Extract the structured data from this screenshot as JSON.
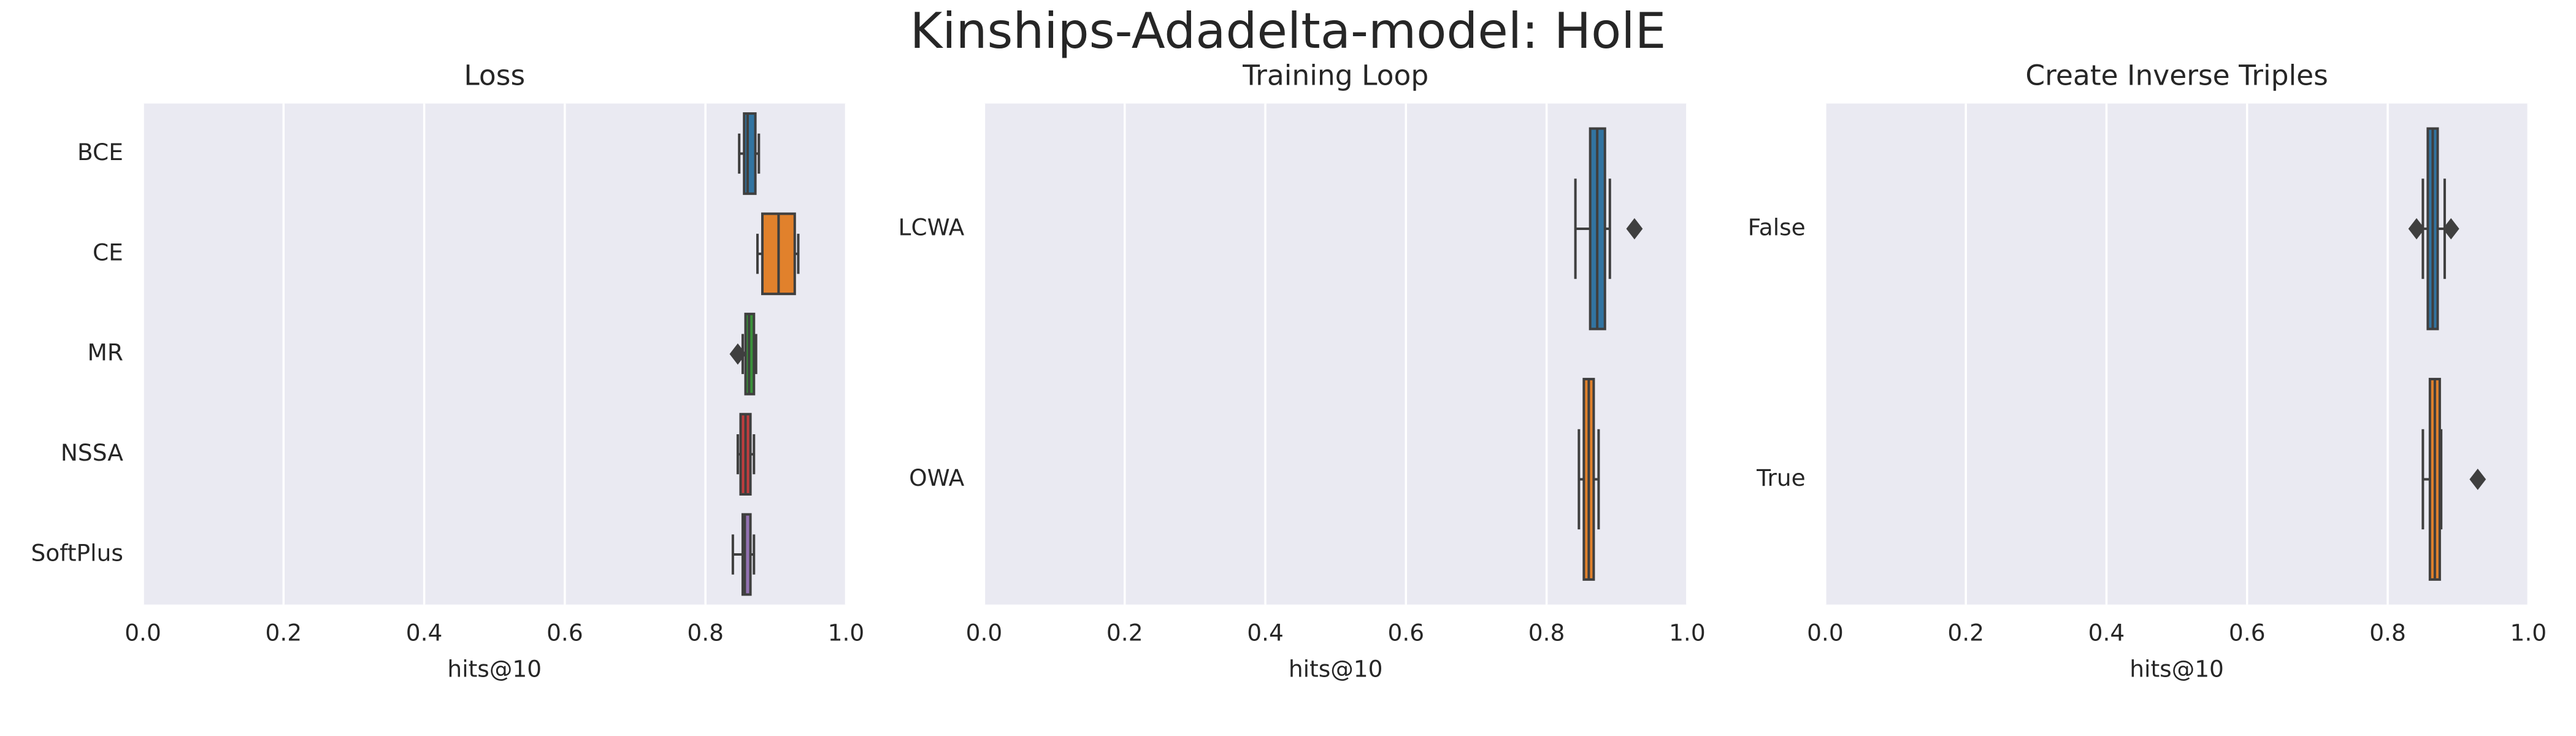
{
  "title": "Kinships-Adadelta-model: HolE",
  "chart_data": [
    {
      "type": "box",
      "title": "Loss",
      "xlabel": "hits@10",
      "categories": [
        "BCE",
        "CE",
        "MR",
        "NSSA",
        "SoftPlus"
      ],
      "colors": [
        "#3274a1",
        "#e1812c",
        "#3a923a",
        "#c03d3e",
        "#9372b2"
      ],
      "boxes": [
        {
          "min": 0.848,
          "q1": 0.855,
          "median": 0.86,
          "q3": 0.871,
          "max": 0.876,
          "outliers": []
        },
        {
          "min": 0.874,
          "q1": 0.881,
          "median": 0.904,
          "q3": 0.927,
          "max": 0.932,
          "outliers": []
        },
        {
          "min": 0.853,
          "q1": 0.857,
          "median": 0.862,
          "q3": 0.869,
          "max": 0.872,
          "outliers": [
            0.846
          ]
        },
        {
          "min": 0.846,
          "q1": 0.85,
          "median": 0.857,
          "q3": 0.864,
          "max": 0.869,
          "outliers": []
        },
        {
          "min": 0.839,
          "q1": 0.853,
          "median": 0.856,
          "q3": 0.864,
          "max": 0.869,
          "outliers": []
        }
      ],
      "xlim": [
        0,
        1
      ],
      "xticks": [
        {
          "value": 0,
          "label": "0.0"
        },
        0.2,
        0.4,
        0.6,
        0.8,
        {
          "value": 1,
          "label": "1.0"
        }
      ],
      "grid": true
    },
    {
      "type": "box",
      "title": "Training Loop",
      "xlabel": "hits@10",
      "categories": [
        "LCWA",
        "OWA"
      ],
      "colors": [
        "#3274a1",
        "#e1812c"
      ],
      "boxes": [
        {
          "min": 0.841,
          "q1": 0.862,
          "median": 0.872,
          "q3": 0.883,
          "max": 0.89,
          "outliers": [
            0.925
          ]
        },
        {
          "min": 0.846,
          "q1": 0.853,
          "median": 0.86,
          "q3": 0.867,
          "max": 0.874,
          "outliers": []
        }
      ],
      "xlim": [
        0,
        1
      ],
      "xticks": [
        {
          "value": 0,
          "label": "0.0"
        },
        0.2,
        0.4,
        0.6,
        0.8,
        {
          "value": 1,
          "label": "1.0"
        }
      ],
      "grid": true
    },
    {
      "type": "box",
      "title": "Create Inverse Triples",
      "xlabel": "hits@10",
      "categories": [
        "False",
        "True"
      ],
      "colors": [
        "#3274a1",
        "#e1812c"
      ],
      "boxes": [
        {
          "min": 0.85,
          "q1": 0.857,
          "median": 0.864,
          "q3": 0.871,
          "max": 0.881,
          "outliers": [
            0.841,
            0.89
          ]
        },
        {
          "min": 0.85,
          "q1": 0.86,
          "median": 0.867,
          "q3": 0.874,
          "max": 0.876,
          "outliers": [
            0.928
          ]
        }
      ],
      "xlim": [
        0,
        1
      ],
      "xticks": [
        {
          "value": 0,
          "label": "0.0"
        },
        0.2,
        0.4,
        0.6,
        0.8,
        {
          "value": 1,
          "label": "1.0"
        }
      ],
      "grid": true
    }
  ]
}
